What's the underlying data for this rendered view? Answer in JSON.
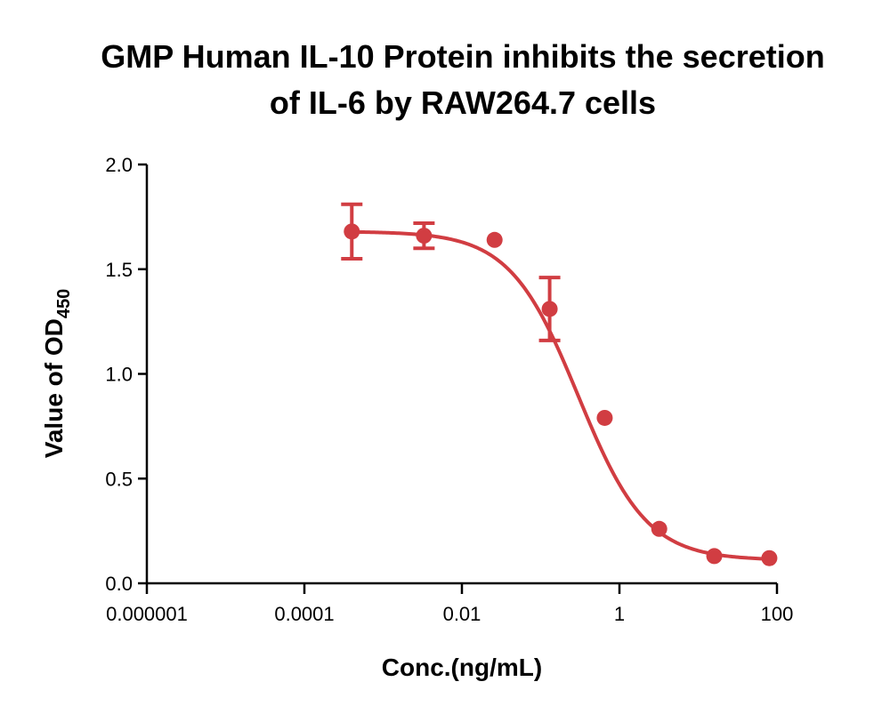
{
  "chart_data": {
    "type": "scatter",
    "title_lines": [
      "GMP Human IL-10 Protein inhibits the secretion",
      "of IL-6 by RAW264.7  cells"
    ],
    "xlabel": "Conc.(ng/mL)",
    "ylabel": "Value of OD",
    "ylabel_subscript": "450",
    "x_scale": "log",
    "xlim": [
      1e-06,
      100
    ],
    "ylim": [
      0,
      2
    ],
    "x_ticks": [
      "0.000001",
      "0.0001",
      "0.01",
      "1",
      "100"
    ],
    "x_tick_values": [
      1e-06,
      0.0001,
      0.01,
      1,
      100
    ],
    "y_ticks": [
      "0.0",
      "0.5",
      "1.0",
      "1.5",
      "2.0"
    ],
    "y_tick_values": [
      0,
      0.5,
      1.0,
      1.5,
      2.0
    ],
    "grid": false,
    "color": "#d13d42",
    "series": [
      {
        "x": [
          0.0004,
          0.0033,
          0.026,
          0.13,
          0.65,
          3.2,
          16,
          80
        ],
        "y": [
          1.68,
          1.66,
          1.64,
          1.31,
          0.79,
          0.26,
          0.13,
          0.12
        ],
        "error": [
          0.13,
          0.06,
          0.0,
          0.15,
          0.0,
          0.0,
          0.0,
          0.0
        ],
        "fit": "4PL"
      }
    ]
  }
}
